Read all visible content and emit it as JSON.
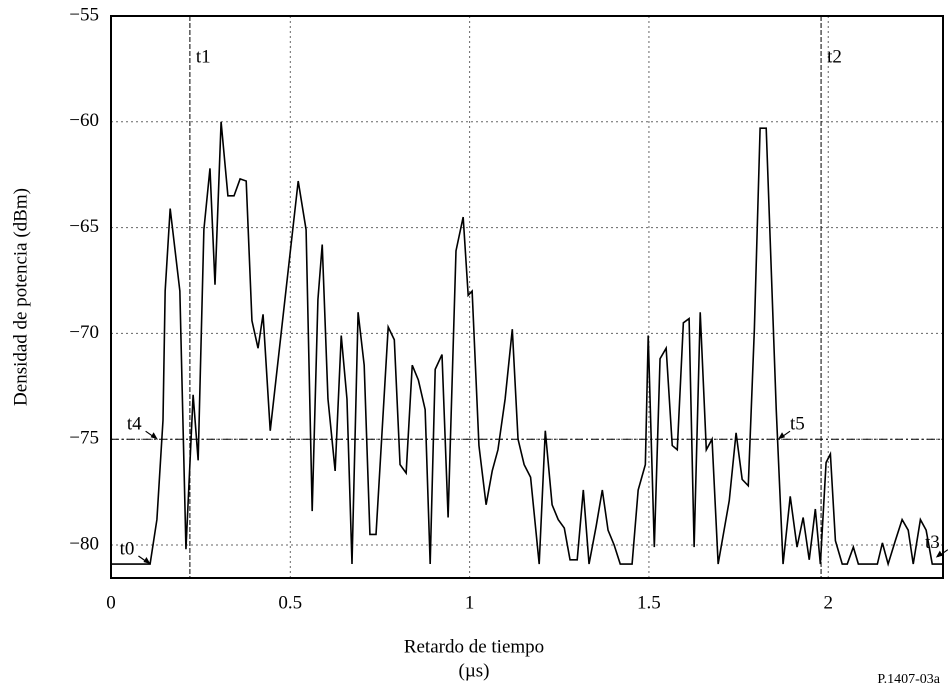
{
  "chart_data": {
    "type": "line",
    "xlabel": [
      "Retardo de tiempo",
      "(µs)"
    ],
    "ylabel": "Densidad de potencia (dBm)",
    "footnote": "P.1407-03a",
    "xlim": [
      0,
      2.32
    ],
    "ylim": [
      -81.56,
      -55
    ],
    "xticks": [
      0,
      0.5,
      1,
      1.5,
      2
    ],
    "yticks": [
      {
        "value": -55,
        "label": "−55"
      },
      {
        "value": -60,
        "label": "−60"
      },
      {
        "value": -65,
        "label": "−65"
      },
      {
        "value": -70,
        "label": "−70"
      },
      {
        "value": -75,
        "label": "−75"
      },
      {
        "value": -80,
        "label": "−80"
      }
    ],
    "grid": true,
    "series": [
      {
        "color": "#000000",
        "x": [
          0,
          0.109,
          0.128,
          0.145,
          0.151,
          0.165,
          0.192,
          0.209,
          0.229,
          0.243,
          0.259,
          0.276,
          0.29,
          0.307,
          0.326,
          0.343,
          0.36,
          0.377,
          0.393,
          0.41,
          0.424,
          0.444,
          0.522,
          0.544,
          0.561,
          0.577,
          0.589,
          0.605,
          0.625,
          0.642,
          0.658,
          0.672,
          0.689,
          0.706,
          0.722,
          0.739,
          0.773,
          0.79,
          0.806,
          0.823,
          0.84,
          0.857,
          0.876,
          0.89,
          0.904,
          0.923,
          0.94,
          0.962,
          0.982,
          0.996,
          1.007,
          1.026,
          1.046,
          1.063,
          1.079,
          1.099,
          1.119,
          1.135,
          1.152,
          1.17,
          1.194,
          1.211,
          1.23,
          1.247,
          1.264,
          1.28,
          1.3,
          1.317,
          1.333,
          1.353,
          1.37,
          1.386,
          1.403,
          1.42,
          1.453,
          1.47,
          1.49,
          1.498,
          1.515,
          1.531,
          1.548,
          1.565,
          1.579,
          1.596,
          1.612,
          1.626,
          1.643,
          1.66,
          1.676,
          1.693,
          1.724,
          1.743,
          1.76,
          1.777,
          1.794,
          1.81,
          1.827,
          1.855,
          1.874,
          1.894,
          1.913,
          1.93,
          1.947,
          1.964,
          1.978,
          1.994,
          2.006,
          2.02,
          2.039,
          2.053,
          2.07,
          2.084,
          2.137,
          2.151,
          2.167,
          2.187,
          2.206,
          2.223,
          2.237,
          2.257,
          2.273,
          2.29,
          2.32
        ],
        "values": [
          -80.9,
          -80.9,
          -78.8,
          -74.1,
          -68,
          -64.1,
          -68,
          -80.2,
          -72.9,
          -76.0,
          -65.1,
          -62.2,
          -67.7,
          -60.0,
          -63.5,
          -63.5,
          -62.7,
          -62.8,
          -69.4,
          -70.7,
          -69.1,
          -74.6,
          -62.8,
          -65.1,
          -78.4,
          -68.4,
          -65.8,
          -73.1,
          -76.5,
          -70.1,
          -73.1,
          -80.9,
          -69.0,
          -71.5,
          -79.5,
          -79.5,
          -69.7,
          -70.3,
          -76.2,
          -76.6,
          -71.5,
          -72.2,
          -73.6,
          -80.9,
          -71.7,
          -71.0,
          -78.7,
          -66.1,
          -64.5,
          -68.2,
          -68,
          -75.3,
          -78.1,
          -76.5,
          -75.5,
          -73.1,
          -69.8,
          -75.0,
          -76.2,
          -76.8,
          -80.9,
          -74.6,
          -78.1,
          -78.8,
          -79.2,
          -80.7,
          -80.7,
          -77.4,
          -80.9,
          -79.1,
          -77.4,
          -79.3,
          -80.0,
          -80.9,
          -80.9,
          -77.4,
          -76.2,
          -70.1,
          -80.1,
          -71.2,
          -70.7,
          -75.3,
          -75.5,
          -69.5,
          -69.3,
          -80.1,
          -69.0,
          -75.5,
          -75.0,
          -80.9,
          -77.9,
          -74.7,
          -76.9,
          -77.2,
          -69.8,
          -60.3,
          -60.3,
          -73.6,
          -80.9,
          -77.7,
          -80.1,
          -78.7,
          -80.7,
          -78.3,
          -80.9,
          -76.1,
          -75.7,
          -79.8,
          -80.9,
          -80.9,
          -80.1,
          -80.9,
          -80.9,
          -79.9,
          -80.9,
          -79.8,
          -78.8,
          -79.3,
          -80.9,
          -78.8,
          -79.3,
          -80.9,
          -80.9
        ]
      }
    ],
    "vlines": [
      {
        "label": "t1",
        "x": 0.22
      },
      {
        "label": "t2",
        "x": 1.98
      }
    ],
    "hlines": [
      {
        "value": -75
      }
    ],
    "annotations": [
      {
        "label": "t0",
        "x": 0.11,
        "y": -80.9
      },
      {
        "label": "t4",
        "x": 0.13,
        "y": -75
      },
      {
        "label": "t5",
        "x": 1.86,
        "y": -75
      },
      {
        "label": "t3",
        "x": 2.3,
        "y": -80.6
      }
    ]
  }
}
